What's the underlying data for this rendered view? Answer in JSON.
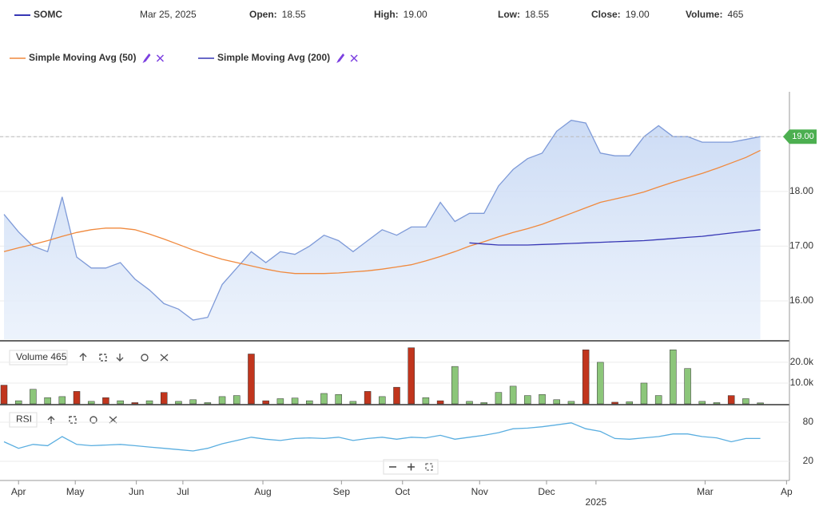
{
  "header": {
    "symbol_date": "Mar 25, 2025",
    "fields": [
      {
        "label": "Open:",
        "value": "18.55"
      },
      {
        "label": "High:",
        "value": "19.00"
      },
      {
        "label": "Low:",
        "value": "18.55"
      },
      {
        "label": "Close:",
        "value": "19.00"
      },
      {
        "label": "Volume:",
        "value": "465"
      }
    ]
  },
  "chart_data": [
    {
      "type": "line",
      "x": [
        0,
        1,
        2,
        3,
        4,
        5,
        6,
        7,
        8,
        9,
        10,
        11,
        12,
        13,
        14,
        15,
        16,
        17,
        18,
        19,
        20,
        21,
        22,
        23,
        24,
        25,
        26,
        27,
        28,
        29,
        30,
        31,
        32,
        33,
        34,
        35,
        36,
        37,
        38,
        39,
        40,
        41,
        42,
        43,
        44,
        45,
        46,
        47,
        48,
        49,
        50,
        51,
        52
      ],
      "xlim": [
        0,
        54
      ],
      "xticks": [
        {
          "value": 1.0,
          "label": "Apr"
        },
        {
          "value": 4.9,
          "label": "May"
        },
        {
          "value": 9.1,
          "label": "Jun"
        },
        {
          "value": 12.3,
          "label": "Jul"
        },
        {
          "value": 17.8,
          "label": "Aug"
        },
        {
          "value": 23.2,
          "label": "Sep"
        },
        {
          "value": 27.4,
          "label": "Oct"
        },
        {
          "value": 32.7,
          "label": "Nov"
        },
        {
          "value": 37.3,
          "label": "Dec"
        },
        {
          "value": 48.2,
          "label": "Mar"
        },
        {
          "value": 53.8,
          "label": "Ap"
        }
      ],
      "year_marker": {
        "value": 40.7,
        "label": "2025"
      },
      "ylim": [
        15.3,
        19.82
      ],
      "yticks": [
        {
          "value": 16,
          "label": "16.00"
        },
        {
          "value": 17,
          "label": "17.00"
        },
        {
          "value": 18,
          "label": "18.00"
        },
        {
          "value": 19,
          "label": "19.00"
        }
      ],
      "last_price": {
        "value": 19,
        "label": "19.00"
      },
      "series": [
        {
          "name": "SOMC",
          "color": "#7e9ad8",
          "values": [
            17.58,
            17.26,
            17.0,
            16.9,
            17.9,
            16.8,
            16.6,
            16.6,
            16.7,
            16.4,
            16.2,
            15.95,
            15.85,
            15.65,
            15.7,
            16.3,
            16.6,
            16.9,
            16.7,
            16.9,
            16.85,
            17.0,
            17.2,
            17.1,
            16.9,
            17.1,
            17.3,
            17.2,
            17.35,
            17.35,
            17.8,
            17.45,
            17.6,
            17.6,
            18.1,
            18.4,
            18.6,
            18.7,
            19.1,
            19.3,
            19.25,
            18.7,
            18.65,
            18.65,
            19.0,
            19.2,
            19.0,
            19.0,
            18.9,
            18.9,
            18.9,
            18.95,
            19.0
          ]
        },
        {
          "name": "Simple Moving Avg (50)",
          "color": "#f0893d",
          "values": [
            16.9,
            16.97,
            17.03,
            17.1,
            17.18,
            17.25,
            17.3,
            17.33,
            17.33,
            17.3,
            17.22,
            17.13,
            17.03,
            16.93,
            16.84,
            16.76,
            16.7,
            16.64,
            16.58,
            16.53,
            16.5,
            16.5,
            16.5,
            16.51,
            16.53,
            16.55,
            16.58,
            16.62,
            16.66,
            16.73,
            16.81,
            16.9,
            17.0,
            17.08,
            17.17,
            17.25,
            17.32,
            17.4,
            17.5,
            17.6,
            17.7,
            17.8,
            17.86,
            17.92,
            17.99,
            18.08,
            18.17,
            18.25,
            18.33,
            18.42,
            18.52,
            18.62,
            18.75
          ]
        },
        {
          "name": "Simple Moving Avg (200)",
          "color": "#3737b5",
          "values": [
            null,
            null,
            null,
            null,
            null,
            null,
            null,
            null,
            null,
            null,
            null,
            null,
            null,
            null,
            null,
            null,
            null,
            null,
            null,
            null,
            null,
            null,
            null,
            null,
            null,
            null,
            null,
            null,
            null,
            null,
            null,
            null,
            17.06,
            17.04,
            17.02,
            17.02,
            17.02,
            17.03,
            17.04,
            17.05,
            17.06,
            17.07,
            17.08,
            17.09,
            17.1,
            17.12,
            17.14,
            17.16,
            17.18,
            17.21,
            17.24,
            17.27,
            17.3
          ]
        }
      ]
    },
    {
      "type": "bar",
      "title": "Volume 465",
      "ylim": [
        0,
        28800
      ],
      "yticks": [
        {
          "value": 10000,
          "label": "10.0k"
        },
        {
          "value": 20000,
          "label": "20.0k"
        }
      ],
      "values": [
        9000,
        1500,
        7000,
        3000,
        3500,
        6000,
        1200,
        3000,
        1500,
        600,
        1500,
        5500,
        1200,
        2000,
        600,
        3500,
        4000,
        24000,
        1500,
        2500,
        2800,
        1500,
        5000,
        4500,
        1200,
        6000,
        3500,
        8000,
        27000,
        3000,
        1500,
        18000,
        1200,
        600,
        5500,
        8500,
        4000,
        4500,
        2000,
        1200,
        26000,
        20000,
        800,
        1000,
        10000,
        4000,
        26000,
        17000,
        1200,
        600,
        4000,
        2500,
        465
      ],
      "colors": [
        "#c1351d",
        "#8cc67a",
        "#8cc67a",
        "#8cc67a",
        "#8cc67a",
        "#c1351d",
        "#8cc67a",
        "#c1351d",
        "#8cc67a",
        "#c1351d",
        "#8cc67a",
        "#c1351d",
        "#8cc67a",
        "#8cc67a",
        "#8cc67a",
        "#8cc67a",
        "#8cc67a",
        "#c1351d",
        "#c1351d",
        "#8cc67a",
        "#8cc67a",
        "#8cc67a",
        "#8cc67a",
        "#8cc67a",
        "#8cc67a",
        "#c1351d",
        "#8cc67a",
        "#c1351d",
        "#c1351d",
        "#8cc67a",
        "#c1351d",
        "#8cc67a",
        "#8cc67a",
        "#8cc67a",
        "#8cc67a",
        "#8cc67a",
        "#8cc67a",
        "#8cc67a",
        "#8cc67a",
        "#8cc67a",
        "#c1351d",
        "#8cc67a",
        "#c1351d",
        "#8cc67a",
        "#8cc67a",
        "#8cc67a",
        "#8cc67a",
        "#8cc67a",
        "#8cc67a",
        "#8cc67a",
        "#c1351d",
        "#8cc67a",
        "#8cc67a"
      ]
    },
    {
      "type": "line",
      "title": "RSI",
      "ylim": [
        -2,
        93.5
      ],
      "yticks": [
        20,
        80
      ],
      "series": [
        {
          "color": "#5aaee0",
          "values": [
            50,
            40,
            46,
            44,
            58,
            46,
            44,
            45,
            46,
            44,
            42,
            40,
            38,
            36,
            40,
            47,
            52,
            57,
            54,
            52,
            55,
            56,
            55,
            57,
            52,
            55,
            57,
            54,
            57,
            56,
            60,
            54,
            57,
            60,
            64,
            70,
            71,
            73,
            76,
            79,
            70,
            66,
            55,
            54,
            56,
            58,
            62,
            62,
            58,
            56,
            50,
            55,
            55
          ]
        }
      ]
    }
  ]
}
